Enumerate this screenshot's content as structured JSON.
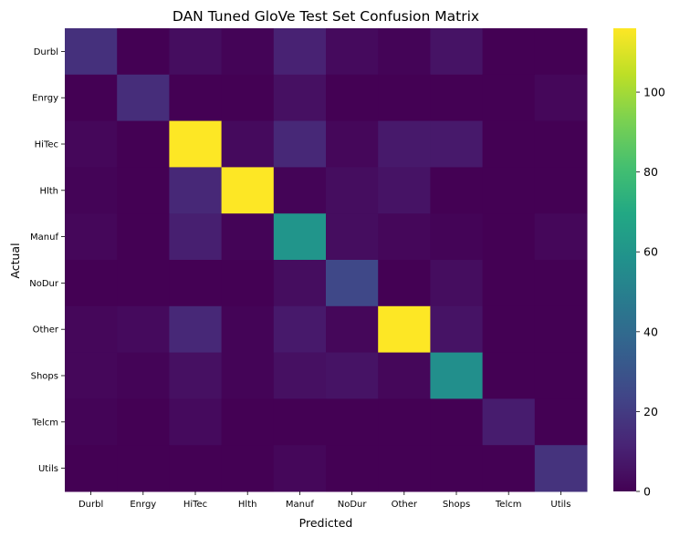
{
  "chart_data": {
    "type": "heatmap",
    "title": "DAN Tuned GloVe Test Set Confusion Matrix",
    "xlabel": "Predicted",
    "ylabel": "Actual",
    "x_categories": [
      "Durbl",
      "Enrgy",
      "HiTec",
      "Hlth",
      "Manuf",
      "NoDur",
      "Other",
      "Shops",
      "Telcm",
      "Utils"
    ],
    "y_categories": [
      "Durbl",
      "Enrgy",
      "HiTec",
      "Hlth",
      "Manuf",
      "NoDur",
      "Other",
      "Shops",
      "Telcm",
      "Utils"
    ],
    "values": [
      [
        16,
        0,
        4,
        1,
        11,
        3,
        1,
        6,
        0,
        0
      ],
      [
        0,
        15,
        0,
        0,
        5,
        0,
        0,
        0,
        0,
        2
      ],
      [
        2,
        0,
        116,
        3,
        13,
        2,
        8,
        8,
        0,
        0
      ],
      [
        1,
        0,
        13,
        116,
        1,
        4,
        6,
        0,
        0,
        0
      ],
      [
        2,
        0,
        10,
        1,
        60,
        4,
        2,
        1,
        0,
        2
      ],
      [
        0,
        0,
        0,
        0,
        4,
        25,
        0,
        4,
        0,
        0
      ],
      [
        2,
        3,
        13,
        1,
        8,
        2,
        116,
        6,
        0,
        0
      ],
      [
        2,
        1,
        5,
        1,
        5,
        6,
        2,
        57,
        0,
        0
      ],
      [
        1,
        0,
        3,
        0,
        0,
        0,
        0,
        0,
        9,
        0
      ],
      [
        0,
        0,
        0,
        0,
        2,
        0,
        0,
        0,
        0,
        17
      ]
    ],
    "colorbar": {
      "min": 0,
      "max": 116,
      "ticks": [
        0,
        20,
        40,
        60,
        80,
        100
      ]
    },
    "colormap": "viridis"
  }
}
